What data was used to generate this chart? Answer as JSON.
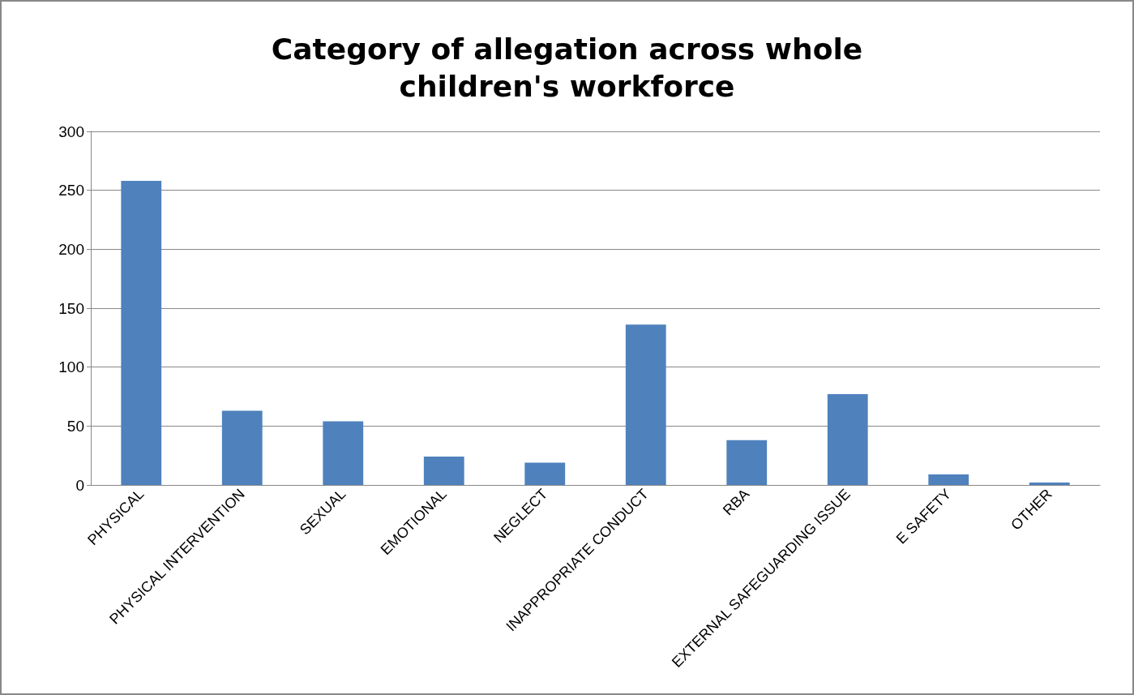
{
  "chart_data": {
    "type": "bar",
    "title": "Category of allegation across whole\nchildren's workforce",
    "categories": [
      "PHYSICAL",
      "PHYSICAL INTERVENTION",
      "SEXUAL",
      "EMOTIONAL",
      "NEGLECT",
      "INAPPROPRIATE CONDUCT",
      "RBA",
      "EXTERNAL SAFEGUARDING ISSUE",
      "E SAFETY",
      "OTHER"
    ],
    "values": [
      258,
      63,
      54,
      24,
      19,
      136,
      38,
      77,
      9,
      2
    ],
    "color": "#4f81bd",
    "ylim": [
      0,
      300
    ],
    "yticks": [
      0,
      50,
      100,
      150,
      200,
      250,
      300
    ],
    "grid": "y"
  }
}
